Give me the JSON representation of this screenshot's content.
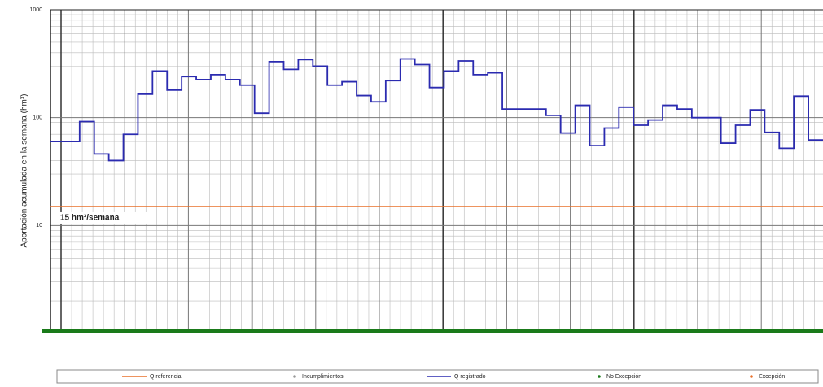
{
  "chart_data": {
    "type": "step-line",
    "y_label": "Aportación acumulada en la semana (hm³)",
    "log_scale": true,
    "grid": true,
    "ylim": [
      1,
      1000
    ],
    "yticks": [
      10,
      100,
      1000
    ],
    "series": [
      {
        "name": "Q registrado",
        "color": "#2b2bb0",
        "values": [
          60,
          60,
          92,
          46,
          40,
          70,
          165,
          270,
          180,
          240,
          225,
          250,
          225,
          200,
          110,
          330,
          280,
          345,
          300,
          200,
          215,
          160,
          140,
          220,
          350,
          310,
          190,
          270,
          335,
          250,
          260,
          120,
          120,
          120,
          105,
          72,
          130,
          55,
          80,
          125,
          85,
          95,
          130,
          120,
          100,
          100,
          58,
          85,
          118,
          73,
          52,
          158,
          62
        ]
      }
    ],
    "reference": {
      "name": "Q referencia",
      "value": 15,
      "label": "15 hm³/semana",
      "color": "#e8702a"
    },
    "legend": [
      {
        "name": "Q referencia",
        "color": "#e8702a",
        "marker": "line"
      },
      {
        "name": "Incumplimientos",
        "color": "#999999",
        "marker": "dot"
      },
      {
        "name": "Q registrado",
        "color": "#2b2bb0",
        "marker": "line"
      },
      {
        "name": "No Excepción",
        "color": "#1a7a1a",
        "marker": "dot"
      },
      {
        "name": "Excepción",
        "color": "#e8702a",
        "marker": "dot"
      }
    ]
  }
}
